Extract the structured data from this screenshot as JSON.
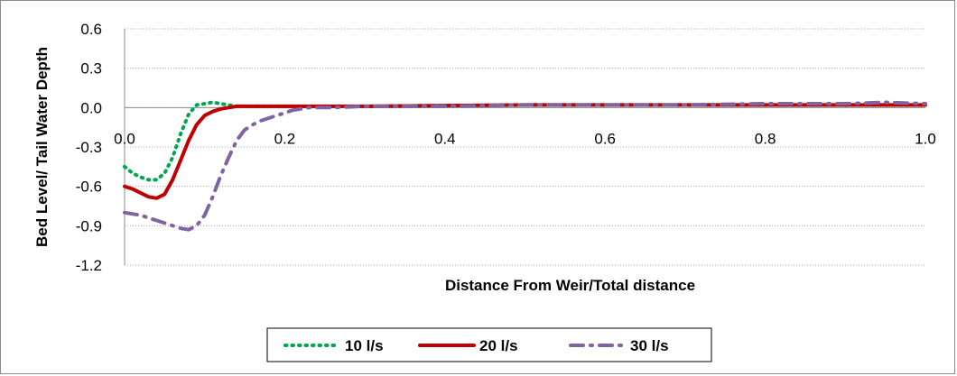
{
  "chart_data": {
    "type": "line",
    "title": "",
    "xlabel": "Distance From Weir/Total distance",
    "ylabel": "Bed Level/ Tail Water Depth",
    "xlim": [
      0,
      1.0
    ],
    "ylim": [
      -1.2,
      0.6
    ],
    "x_ticks": [
      "0.0",
      "0.2",
      "0.4",
      "0.6",
      "0.8",
      "1.0"
    ],
    "x_tick_values": [
      0,
      0.2,
      0.4,
      0.6,
      0.8,
      1.0
    ],
    "y_ticks": [
      "0.6",
      "0.3",
      "0.0",
      "-0.3",
      "-0.6",
      "-0.9",
      "-1.2"
    ],
    "y_tick_values": [
      0.6,
      0.3,
      0.0,
      -0.3,
      -0.6,
      -0.9,
      -1.2
    ],
    "grid": "horizontal-dotted",
    "legend_position": "bottom",
    "series": [
      {
        "name": "10 l/s",
        "color": "#00a550",
        "style": "dotted",
        "x": [
          0,
          0.01,
          0.02,
          0.03,
          0.04,
          0.05,
          0.06,
          0.07,
          0.08,
          0.09,
          0.1,
          0.11,
          0.12,
          0.13,
          0.14,
          0.16,
          0.2,
          0.3,
          0.5,
          0.7,
          0.9,
          1.0
        ],
        "y": [
          -0.45,
          -0.5,
          -0.53,
          -0.55,
          -0.55,
          -0.5,
          -0.38,
          -0.2,
          -0.05,
          0.02,
          0.03,
          0.04,
          0.03,
          0.02,
          0.01,
          0.01,
          0.01,
          0.01,
          0.02,
          0.02,
          0.02,
          0.02
        ]
      },
      {
        "name": "20 l/s",
        "color": "#c00000",
        "style": "solid",
        "x": [
          0,
          0.01,
          0.02,
          0.03,
          0.04,
          0.05,
          0.06,
          0.07,
          0.08,
          0.09,
          0.1,
          0.11,
          0.12,
          0.13,
          0.14,
          0.15,
          0.16,
          0.18,
          0.2,
          0.3,
          0.5,
          0.7,
          0.9,
          1.0
        ],
        "y": [
          -0.6,
          -0.62,
          -0.65,
          -0.68,
          -0.69,
          -0.66,
          -0.55,
          -0.4,
          -0.25,
          -0.13,
          -0.06,
          -0.03,
          -0.01,
          0.0,
          0.01,
          0.01,
          0.01,
          0.01,
          0.01,
          0.01,
          0.02,
          0.02,
          0.02,
          0.02
        ]
      },
      {
        "name": "30 l/s",
        "color": "#8064a2",
        "style": "dash-dot",
        "x": [
          0,
          0.02,
          0.04,
          0.06,
          0.07,
          0.08,
          0.09,
          0.1,
          0.11,
          0.12,
          0.13,
          0.14,
          0.15,
          0.16,
          0.17,
          0.18,
          0.19,
          0.2,
          0.21,
          0.23,
          0.26,
          0.3,
          0.4,
          0.5,
          0.6,
          0.7,
          0.8,
          0.9,
          0.95,
          1.0
        ],
        "y": [
          -0.8,
          -0.82,
          -0.86,
          -0.9,
          -0.92,
          -0.93,
          -0.9,
          -0.82,
          -0.68,
          -0.52,
          -0.38,
          -0.25,
          -0.17,
          -0.13,
          -0.1,
          -0.08,
          -0.06,
          -0.04,
          -0.02,
          0.0,
          0.0,
          0.01,
          0.01,
          0.02,
          0.02,
          0.02,
          0.03,
          0.03,
          0.04,
          0.03
        ]
      }
    ]
  }
}
